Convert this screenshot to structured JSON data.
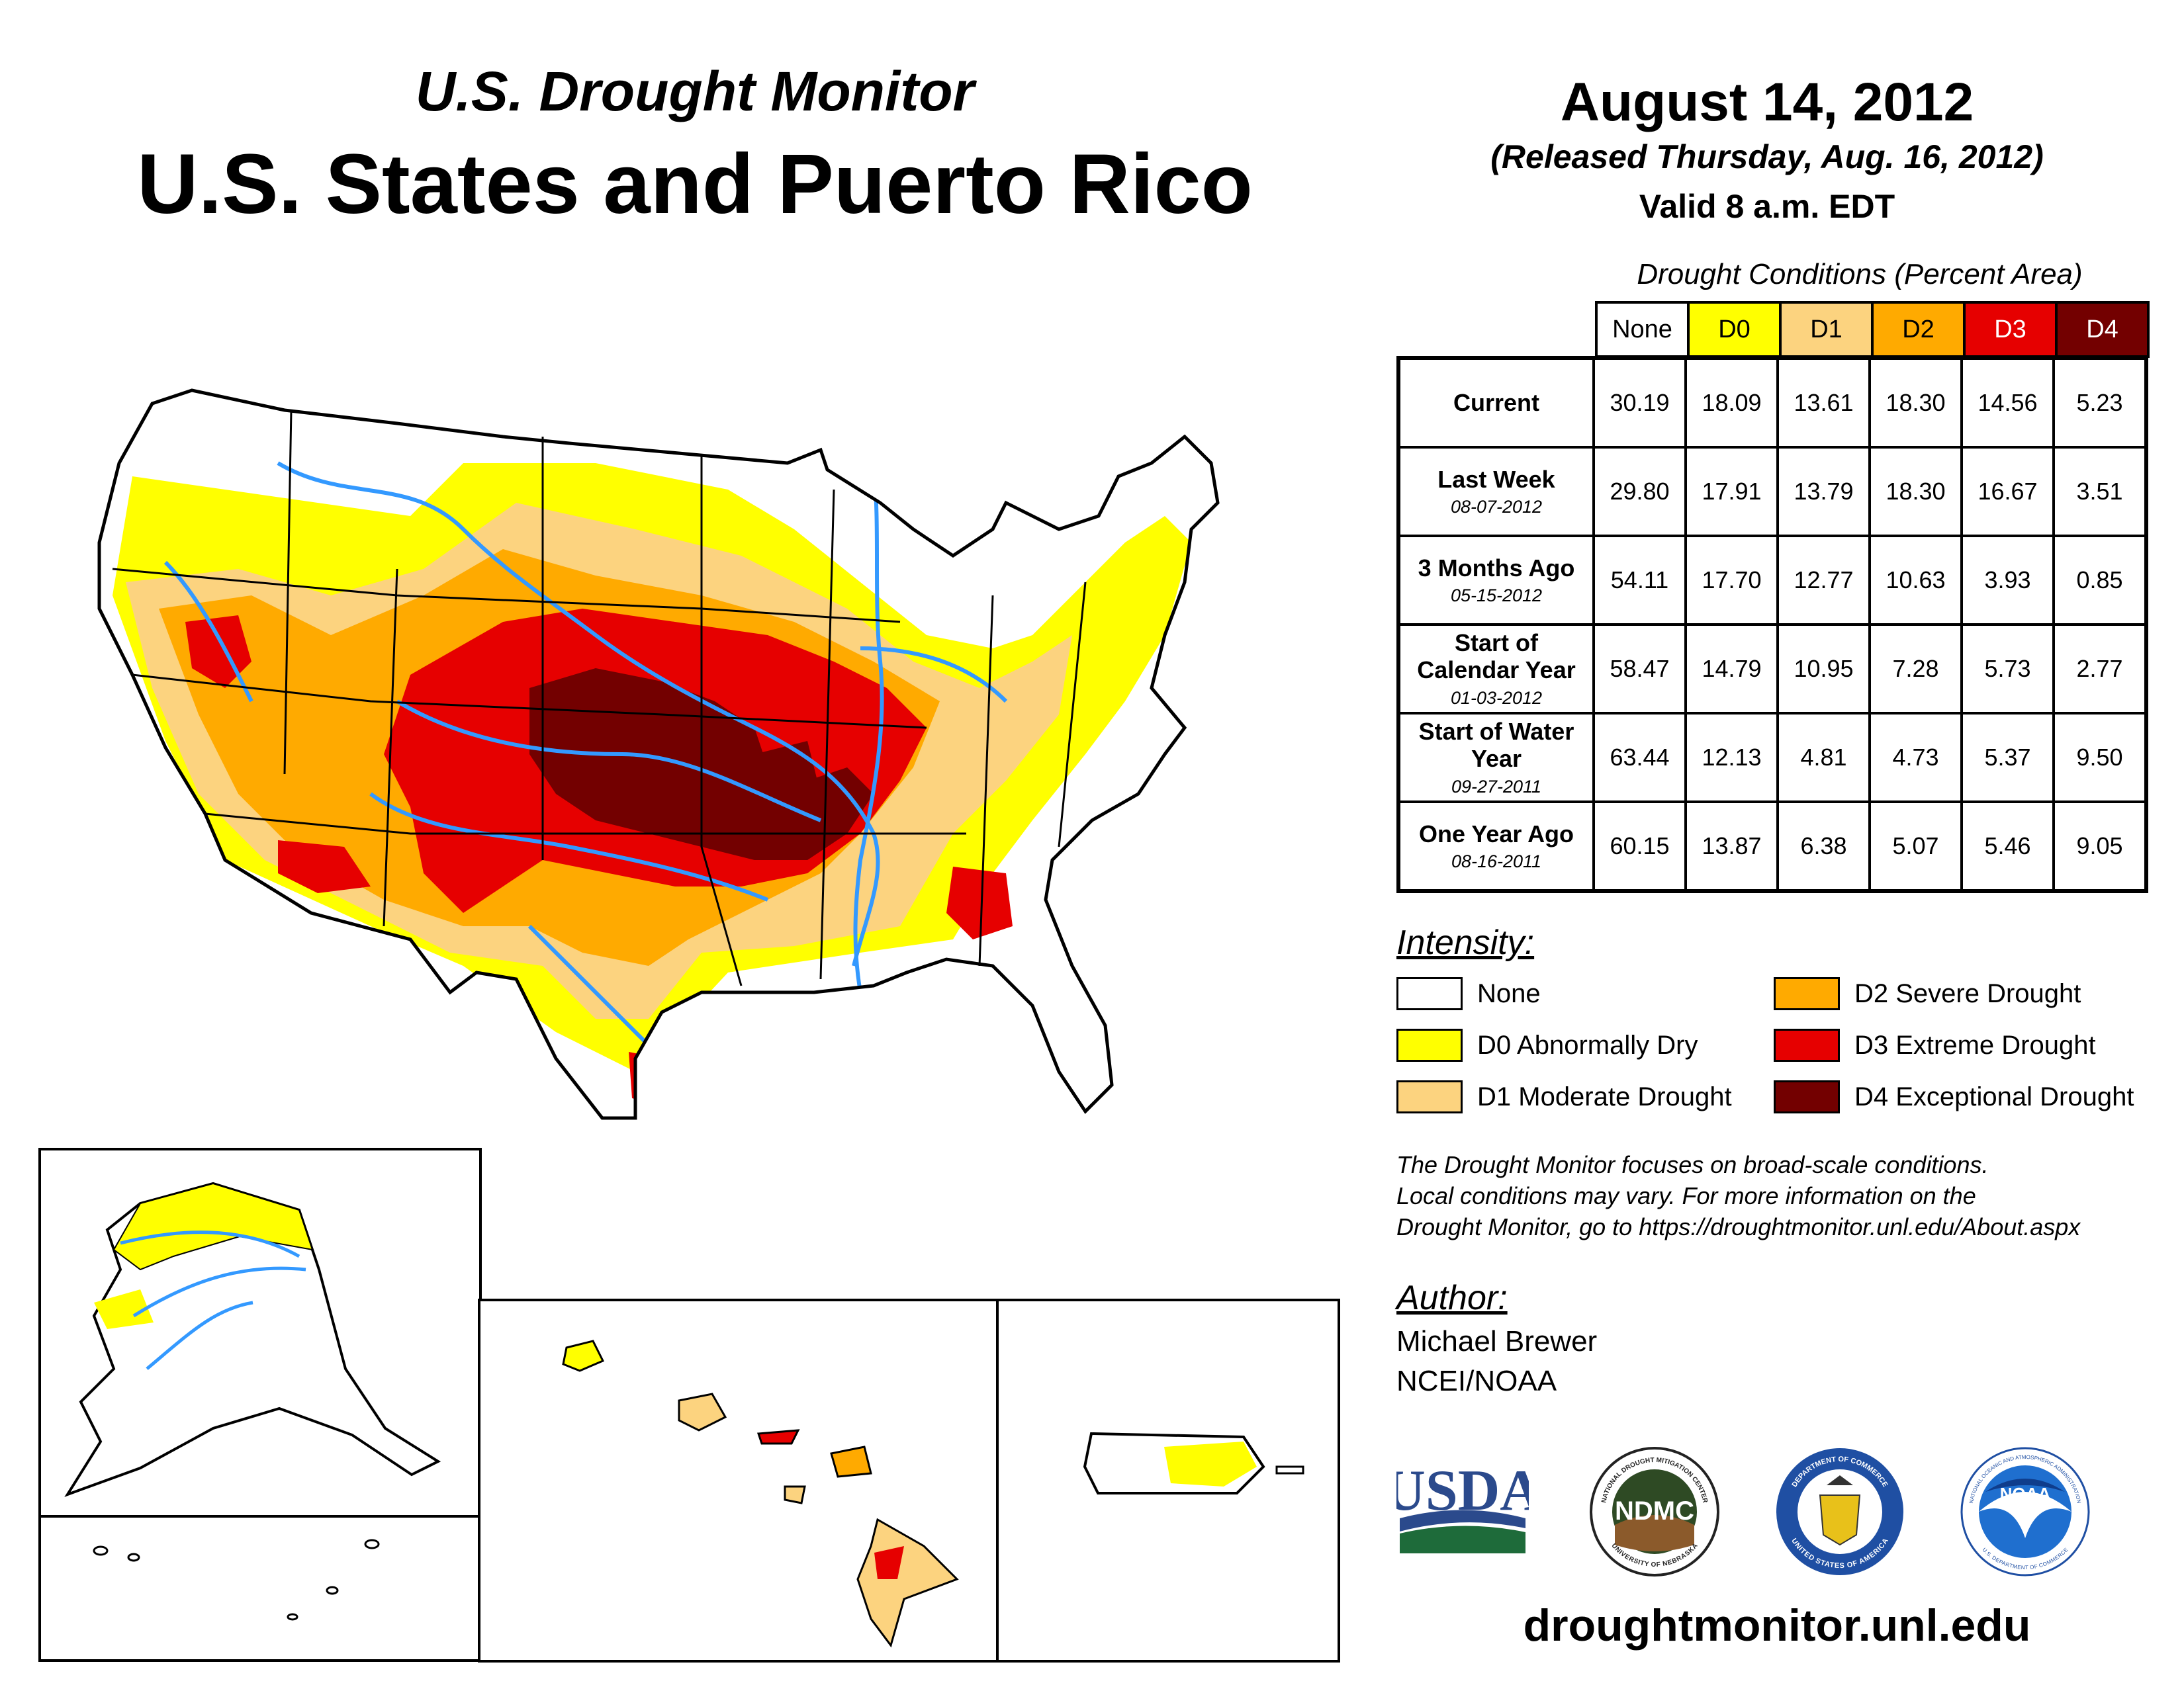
{
  "header": {
    "subtitle": "U.S. Drought Monitor",
    "title": "U.S. States and Puerto Rico",
    "date": "August 14, 2012",
    "released": "(Released Thursday, Aug. 16, 2012)",
    "valid": "Valid 8 a.m. EDT"
  },
  "table": {
    "title": "Drought Conditions (Percent Area)",
    "columns": [
      {
        "label": "None",
        "color": "#ffffff"
      },
      {
        "label": "D0",
        "color": "#ffff00"
      },
      {
        "label": "D1",
        "color": "#fcd37f"
      },
      {
        "label": "D2",
        "color": "#ffaa00"
      },
      {
        "label": "D3",
        "color": "#e60000"
      },
      {
        "label": "D4",
        "color": "#730000"
      }
    ],
    "rows": [
      {
        "label": "Current",
        "date": "",
        "values": [
          "30.19",
          "18.09",
          "13.61",
          "18.30",
          "14.56",
          "5.23"
        ]
      },
      {
        "label": "Last Week",
        "date": "08-07-2012",
        "values": [
          "29.80",
          "17.91",
          "13.79",
          "18.30",
          "16.67",
          "3.51"
        ]
      },
      {
        "label": "3 Months Ago",
        "date": "05-15-2012",
        "values": [
          "54.11",
          "17.70",
          "12.77",
          "10.63",
          "3.93",
          "0.85"
        ]
      },
      {
        "label": "Start of Calendar Year",
        "date": "01-03-2012",
        "values": [
          "58.47",
          "14.79",
          "10.95",
          "7.28",
          "5.73",
          "2.77"
        ]
      },
      {
        "label": "Start of Water Year",
        "date": "09-27-2011",
        "values": [
          "63.44",
          "12.13",
          "4.81",
          "4.73",
          "5.37",
          "9.50"
        ]
      },
      {
        "label": "One Year Ago",
        "date": "08-16-2011",
        "values": [
          "60.15",
          "13.87",
          "6.38",
          "5.07",
          "5.46",
          "9.05"
        ]
      }
    ]
  },
  "legend": {
    "title": "Intensity:",
    "items": [
      {
        "label": "None",
        "color": "#ffffff"
      },
      {
        "label": "D0 Abnormally Dry",
        "color": "#ffff00"
      },
      {
        "label": "D1 Moderate Drought",
        "color": "#fcd37f"
      },
      {
        "label": "D2 Severe Drought",
        "color": "#ffaa00"
      },
      {
        "label": "D3 Extreme Drought",
        "color": "#e60000"
      },
      {
        "label": "D4 Exceptional Drought",
        "color": "#730000"
      }
    ]
  },
  "note": {
    "line1": "The Drought Monitor focuses on broad-scale conditions.",
    "line2": "Local conditions may vary. For more information on the",
    "line3": "Drought Monitor, go to https://droughtmonitor.unl.edu/About.aspx"
  },
  "author": {
    "title": "Author:",
    "name": "Michael Brewer",
    "org": "NCEI/NOAA"
  },
  "logos": {
    "usda": "USDA",
    "ndmc": "NDMC",
    "ndmc_ring_top": "NATIONAL DROUGHT MITIGATION CENTER",
    "ndmc_ring_bottom": "UNIVERSITY OF NEBRASKA",
    "doc_ring_top": "DEPARTMENT OF COMMERCE",
    "doc_ring_bottom": "UNITED STATES OF AMERICA",
    "noaa": "NOAA",
    "noaa_ring_top": "NATIONAL OCEANIC AND ATMOSPHERIC ADMINISTRATION",
    "noaa_ring_bottom": "U.S. DEPARTMENT OF COMMERCE"
  },
  "site": "droughtmonitor.unl.edu",
  "colors": {
    "river": "#3399ff",
    "border": "#000000"
  }
}
